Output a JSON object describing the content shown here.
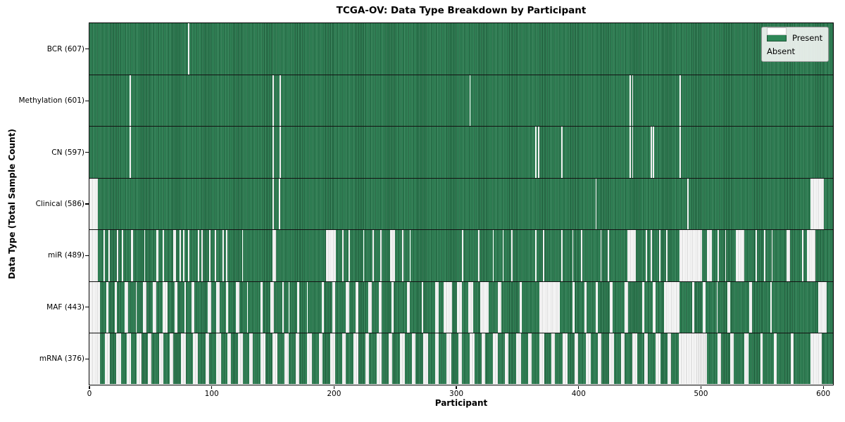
{
  "chart": {
    "title": "TCGA-OV: Data Type Breakdown by Participant",
    "xlabel": "Participant",
    "ylabel": "Data Type (Total Sample Count)",
    "legend": {
      "present_label": "Present",
      "absent_label": "Absent"
    },
    "colors": {
      "present": "#2e8757",
      "present_stripe": "#1d5536",
      "absent": "#ffffff",
      "absent_stripe": "#c7c7c7",
      "legend_bg": "#f4f6f4",
      "plot_border": "#000000"
    }
  },
  "chart_data": {
    "type": "heatmap",
    "title": "TCGA-OV: Data Type Breakdown by Participant",
    "xlabel": "Participant",
    "ylabel": "Data Type (Total Sample Count)",
    "legend": [
      "Present",
      "Absent"
    ],
    "legend_position": "upper right",
    "n_participants": 608,
    "x_ticks": [
      0,
      100,
      200,
      300,
      400,
      500,
      600
    ],
    "xlim": [
      0,
      608
    ],
    "cell_values": "binary present/absent per participant",
    "absent_ranges_are_approximate": true,
    "rows": [
      {
        "label": "BCR (607)",
        "name": "BCR",
        "present_count": 607,
        "absent_count": 1,
        "absent_ranges": [
          [
            81,
            81
          ]
        ]
      },
      {
        "label": "Methylation (601)",
        "name": "Methylation",
        "present_count": 601,
        "absent_count": 7,
        "absent_ranges": [
          [
            33,
            33
          ],
          [
            150,
            150
          ],
          [
            156,
            156
          ],
          [
            311,
            311
          ],
          [
            442,
            442
          ],
          [
            444,
            444
          ],
          [
            483,
            483
          ]
        ]
      },
      {
        "label": "CN (597)",
        "name": "CN",
        "present_count": 597,
        "absent_count": 11,
        "absent_ranges": [
          [
            33,
            33
          ],
          [
            150,
            150
          ],
          [
            156,
            156
          ],
          [
            365,
            365
          ],
          [
            367,
            367
          ],
          [
            386,
            386
          ],
          [
            442,
            442
          ],
          [
            444,
            444
          ],
          [
            459,
            459
          ],
          [
            461,
            461
          ],
          [
            483,
            483
          ]
        ]
      },
      {
        "label": "Clinical (586)",
        "name": "Clinical",
        "present_count": 586,
        "absent_count": 22,
        "absent_ranges": [
          [
            0,
            6
          ],
          [
            150,
            150
          ],
          [
            155,
            155
          ],
          [
            414,
            414
          ],
          [
            489,
            489
          ],
          [
            590,
            600
          ]
        ]
      },
      {
        "label": "miR (489)",
        "name": "miR",
        "present_count": 489,
        "absent_count": 119,
        "absent_ranges": [
          [
            0,
            6
          ],
          [
            12,
            12
          ],
          [
            16,
            16
          ],
          [
            23,
            23
          ],
          [
            27,
            27
          ],
          [
            34,
            35
          ],
          [
            45,
            45
          ],
          [
            55,
            56
          ],
          [
            60,
            60
          ],
          [
            69,
            70
          ],
          [
            74,
            74
          ],
          [
            77,
            77
          ],
          [
            81,
            81
          ],
          [
            89,
            89
          ],
          [
            92,
            92
          ],
          [
            98,
            98
          ],
          [
            103,
            103
          ],
          [
            109,
            109
          ],
          [
            112,
            112
          ],
          [
            125,
            125
          ],
          [
            150,
            152
          ],
          [
            194,
            201
          ],
          [
            207,
            207
          ],
          [
            212,
            212
          ],
          [
            224,
            224
          ],
          [
            232,
            232
          ],
          [
            238,
            238
          ],
          [
            246,
            249
          ],
          [
            256,
            256
          ],
          [
            262,
            262
          ],
          [
            305,
            305
          ],
          [
            318,
            318
          ],
          [
            330,
            330
          ],
          [
            338,
            338
          ],
          [
            345,
            345
          ],
          [
            365,
            365
          ],
          [
            371,
            371
          ],
          [
            386,
            386
          ],
          [
            395,
            395
          ],
          [
            402,
            402
          ],
          [
            418,
            418
          ],
          [
            424,
            424
          ],
          [
            440,
            446
          ],
          [
            455,
            455
          ],
          [
            459,
            459
          ],
          [
            466,
            466
          ],
          [
            472,
            472
          ],
          [
            483,
            500
          ],
          [
            505,
            508
          ],
          [
            514,
            514
          ],
          [
            520,
            520
          ],
          [
            529,
            535
          ],
          [
            545,
            545
          ],
          [
            552,
            552
          ],
          [
            558,
            558
          ],
          [
            570,
            572
          ],
          [
            583,
            583
          ],
          [
            587,
            593
          ]
        ]
      },
      {
        "label": "MAF (443)",
        "name": "MAF",
        "present_count": 443,
        "absent_count": 165,
        "absent_ranges": [
          [
            0,
            8
          ],
          [
            14,
            15
          ],
          [
            21,
            22
          ],
          [
            29,
            31
          ],
          [
            38,
            38
          ],
          [
            44,
            46
          ],
          [
            52,
            54
          ],
          [
            60,
            63
          ],
          [
            70,
            71
          ],
          [
            78,
            78
          ],
          [
            84,
            85
          ],
          [
            97,
            99
          ],
          [
            104,
            106
          ],
          [
            112,
            113
          ],
          [
            120,
            122
          ],
          [
            129,
            129
          ],
          [
            140,
            141
          ],
          [
            148,
            150
          ],
          [
            158,
            158
          ],
          [
            163,
            163
          ],
          [
            170,
            171
          ],
          [
            178,
            178
          ],
          [
            190,
            191
          ],
          [
            199,
            200
          ],
          [
            210,
            212
          ],
          [
            218,
            219
          ],
          [
            228,
            230
          ],
          [
            237,
            238
          ],
          [
            247,
            248
          ],
          [
            260,
            261
          ],
          [
            272,
            272
          ],
          [
            283,
            285
          ],
          [
            290,
            296
          ],
          [
            301,
            304
          ],
          [
            310,
            313
          ],
          [
            320,
            326
          ],
          [
            334,
            336
          ],
          [
            352,
            353
          ],
          [
            368,
            384
          ],
          [
            395,
            396
          ],
          [
            405,
            406
          ],
          [
            414,
            415
          ],
          [
            426,
            427
          ],
          [
            438,
            440
          ],
          [
            452,
            453
          ],
          [
            461,
            462
          ],
          [
            470,
            482
          ],
          [
            493,
            494
          ],
          [
            502,
            503
          ],
          [
            513,
            513
          ],
          [
            522,
            523
          ],
          [
            540,
            541
          ],
          [
            557,
            557
          ],
          [
            596,
            602
          ]
        ]
      },
      {
        "label": "mRNA (376)",
        "name": "mRNA",
        "present_count": 376,
        "absent_count": 232,
        "absent_ranges": [
          [
            0,
            8
          ],
          [
            13,
            16
          ],
          [
            22,
            25
          ],
          [
            31,
            33
          ],
          [
            39,
            42
          ],
          [
            48,
            50
          ],
          [
            57,
            60
          ],
          [
            66,
            68
          ],
          [
            75,
            78
          ],
          [
            85,
            88
          ],
          [
            95,
            97
          ],
          [
            104,
            107
          ],
          [
            113,
            115
          ],
          [
            122,
            125
          ],
          [
            131,
            133
          ],
          [
            140,
            143
          ],
          [
            150,
            153
          ],
          [
            160,
            162
          ],
          [
            169,
            171
          ],
          [
            178,
            181
          ],
          [
            188,
            190
          ],
          [
            197,
            200
          ],
          [
            207,
            209
          ],
          [
            216,
            219
          ],
          [
            226,
            228
          ],
          [
            235,
            238
          ],
          [
            245,
            247
          ],
          [
            254,
            257
          ],
          [
            264,
            266
          ],
          [
            273,
            276
          ],
          [
            283,
            285
          ],
          [
            292,
            295
          ],
          [
            302,
            304
          ],
          [
            311,
            314
          ],
          [
            321,
            323
          ],
          [
            330,
            333
          ],
          [
            340,
            342
          ],
          [
            349,
            352
          ],
          [
            359,
            361
          ],
          [
            368,
            371
          ],
          [
            378,
            380
          ],
          [
            387,
            390
          ],
          [
            397,
            399
          ],
          [
            406,
            409
          ],
          [
            416,
            418
          ],
          [
            425,
            428
          ],
          [
            435,
            437
          ],
          [
            444,
            447
          ],
          [
            454,
            456
          ],
          [
            463,
            466
          ],
          [
            473,
            475
          ],
          [
            482,
            504
          ],
          [
            514,
            516
          ],
          [
            524,
            526
          ],
          [
            536,
            538
          ],
          [
            549,
            550
          ],
          [
            560,
            561
          ],
          [
            574,
            575
          ],
          [
            590,
            598
          ]
        ]
      }
    ]
  }
}
